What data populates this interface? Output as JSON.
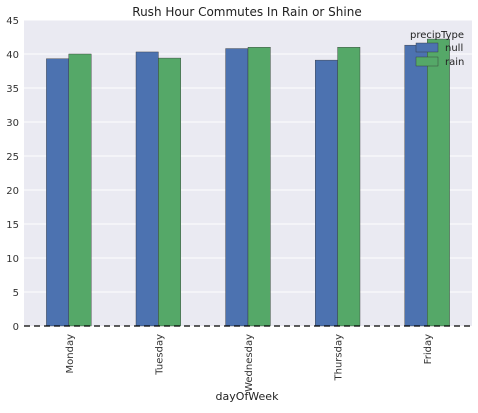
{
  "chart_data": {
    "type": "bar",
    "title": "Rush Hour Commutes In Rain or Shine",
    "xlabel": "dayOfWeek",
    "ylabel": "",
    "categories": [
      "Monday",
      "Tuesday",
      "Wednesday",
      "Thursday",
      "Friday"
    ],
    "series": [
      {
        "name": "null",
        "color": "#4c72b0",
        "values": [
          39.3,
          40.3,
          40.8,
          39.1,
          41.3
        ]
      },
      {
        "name": "rain",
        "color": "#55a868",
        "values": [
          40.0,
          39.4,
          41.0,
          41.0,
          42.2
        ]
      }
    ],
    "ylim": [
      0,
      45
    ],
    "yticks": [
      0,
      5,
      10,
      15,
      20,
      25,
      30,
      35,
      40,
      45
    ],
    "legend": {
      "title": "precipType",
      "placement": "top-right"
    },
    "grid": true,
    "background": "#eaeaf2",
    "zero_line": "dashed black at y = 0"
  }
}
